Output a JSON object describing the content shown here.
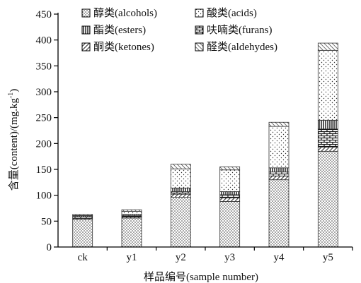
{
  "chart_data": {
    "type": "bar",
    "stacked": true,
    "title": "",
    "xlabel": "样品编号(sample number)",
    "ylabel": "含量(content)/(mg.kg-1)",
    "ylabel_base": "含量(content)/(mg.kg",
    "ylabel_sup": "-1",
    "ylabel_close": ")",
    "ylim": [
      0,
      450
    ],
    "yticks": [
      "0",
      "50",
      "100",
      "150",
      "200",
      "250",
      "300",
      "350",
      "400",
      "450"
    ],
    "categories": [
      "ck",
      "y1",
      "y2",
      "y3",
      "y4",
      "y5"
    ],
    "legend_position": "top-left inside, two columns",
    "series": [
      {
        "name": "醇类(alcohols)",
        "values": [
          53,
          56,
          96,
          88,
          130,
          185
        ],
        "pattern": "dots"
      },
      {
        "name": "酮类(ketones)",
        "values": [
          2,
          2,
          6,
          7,
          7,
          8
        ],
        "pattern": "diagonal"
      },
      {
        "name": "呋喃类(furans)",
        "values": [
          3,
          3,
          5,
          6,
          8,
          35
        ],
        "pattern": "brick"
      },
      {
        "name": "酯类(esters)",
        "values": [
          2,
          2,
          7,
          6,
          8,
          17
        ],
        "pattern": "vertical"
      },
      {
        "name": "酸类(acids)",
        "values": [
          1,
          6,
          37,
          42,
          80,
          135
        ],
        "pattern": "sparse-dots"
      },
      {
        "name": "醛类(aldehydes)",
        "values": [
          2,
          3,
          9,
          6,
          8,
          14
        ],
        "pattern": "hatch"
      }
    ],
    "legend_order": [
      "醇类(alcohols)",
      "酸类(acids)",
      "酯类(esters)",
      "呋喃类(furans)",
      "酮类(ketones)",
      "醛类(aldehydes)"
    ]
  }
}
